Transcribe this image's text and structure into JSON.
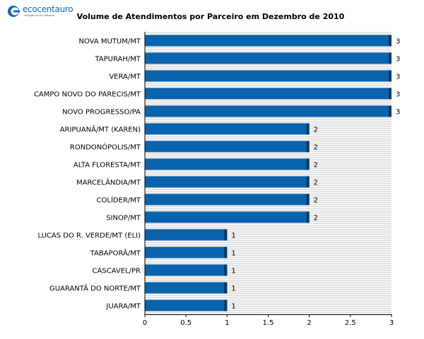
{
  "logo": {
    "name": "ecocentauro",
    "tagline": "inteligência em software"
  },
  "chart_data": {
    "type": "bar",
    "orientation": "horizontal",
    "title": "Volume de Atendimentos por Parceiro em Dezembro de 2010",
    "categories": [
      "NOVA MUTUM/MT",
      "TAPURAH/MT",
      "VERA/MT",
      "CAMPO NOVO DO PARECIS/MT",
      "NOVO PROGRESSO/PA",
      "ARIPUANÃ/MT (KAREN)",
      "RONDONÓPOLIS/MT",
      "ALTA FLORESTA/MT",
      "MARCELÂNDIA/MT",
      "COLÍDER/MT",
      "SINOP/MT",
      "LUCAS DO R. VERDE/MT (ELI)",
      "TABAPORÃ/MT",
      "CASCAVEL/PR",
      "GUARANTÃ DO NORTE/MT",
      "JUARA/MT"
    ],
    "values": [
      3,
      3,
      3,
      3,
      3,
      2,
      2,
      2,
      2,
      2,
      2,
      1,
      1,
      1,
      1,
      1
    ],
    "value_labels": [
      "3",
      "3",
      "3",
      "3",
      "3",
      "2",
      "2",
      "2",
      "2",
      "2",
      "2",
      "1",
      "1",
      "1",
      "1",
      "1"
    ],
    "xlim": [
      0,
      3
    ],
    "xticks": [
      "0",
      "0.5",
      "1",
      "1.5",
      "2",
      "2.5",
      "3"
    ],
    "bar_color": "#0a63ad",
    "bar_edge_color": "#063a66",
    "background_stripes": true,
    "legend": "none"
  }
}
